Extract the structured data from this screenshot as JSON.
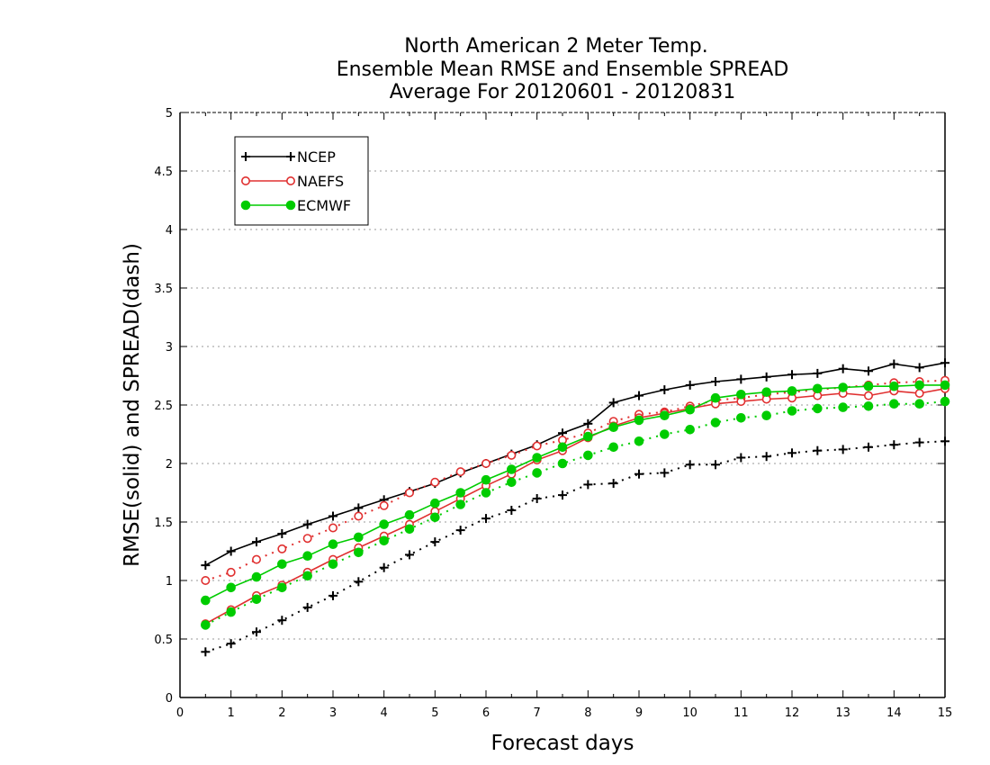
{
  "chart_data": {
    "type": "line",
    "title_lines": [
      "North American 2 Meter Temp.",
      "Ensemble Mean RMSE and Ensemble SPREAD",
      "Average For 20120601 - 20120831"
    ],
    "xlabel": "Forecast days",
    "ylabel": "RMSE(solid) and SPREAD(dash)",
    "xlim": [
      0,
      15
    ],
    "ylim": [
      0,
      5
    ],
    "x_ticks": [
      "0",
      "1",
      "2",
      "3",
      "4",
      "5",
      "6",
      "7",
      "8",
      "9",
      "10",
      "11",
      "12",
      "13",
      "14",
      "15"
    ],
    "y_ticks": [
      "0",
      "0.5",
      "1",
      "1.5",
      "2",
      "2.5",
      "3",
      "3.5",
      "4",
      "4.5",
      "5"
    ],
    "grid": "horizontal-dotted",
    "legend_position": "top-left",
    "x": [
      0.5,
      1,
      1.5,
      2,
      2.5,
      3,
      3.5,
      4,
      4.5,
      5,
      5.5,
      6,
      6.5,
      7,
      7.5,
      8,
      8.5,
      9,
      9.5,
      10,
      10.5,
      11,
      11.5,
      12,
      12.5,
      13,
      13.5,
      14,
      14.5,
      15
    ],
    "series": [
      {
        "name": "NCEP",
        "color": "#000000",
        "marker": "plus",
        "rmse": [
          1.13,
          1.25,
          1.33,
          1.4,
          1.48,
          1.55,
          1.62,
          1.69,
          1.76,
          1.83,
          1.92,
          2.0,
          2.08,
          2.16,
          2.26,
          2.34,
          2.52,
          2.58,
          2.63,
          2.67,
          2.7,
          2.72,
          2.74,
          2.76,
          2.77,
          2.81,
          2.79,
          2.85,
          2.82,
          2.86
        ],
        "spread": [
          0.39,
          0.46,
          0.56,
          0.66,
          0.77,
          0.87,
          0.99,
          1.11,
          1.22,
          1.33,
          1.43,
          1.53,
          1.6,
          1.7,
          1.73,
          1.82,
          1.83,
          1.91,
          1.92,
          1.99,
          1.99,
          2.05,
          2.06,
          2.09,
          2.11,
          2.12,
          2.14,
          2.16,
          2.18,
          2.19
        ]
      },
      {
        "name": "NAEFS",
        "color": "#e03030",
        "marker": "open-circle",
        "rmse": [
          0.63,
          0.75,
          0.87,
          0.96,
          1.07,
          1.18,
          1.28,
          1.38,
          1.48,
          1.59,
          1.7,
          1.81,
          1.91,
          2.03,
          2.11,
          2.22,
          2.32,
          2.39,
          2.43,
          2.47,
          2.51,
          2.53,
          2.55,
          2.56,
          2.58,
          2.6,
          2.58,
          2.62,
          2.6,
          2.64
        ],
        "spread": [
          1.0,
          1.07,
          1.18,
          1.27,
          1.36,
          1.45,
          1.55,
          1.64,
          1.75,
          1.84,
          1.93,
          2.0,
          2.07,
          2.15,
          2.2,
          2.26,
          2.36,
          2.42,
          2.44,
          2.49,
          2.54,
          2.56,
          2.59,
          2.61,
          2.63,
          2.65,
          2.67,
          2.69,
          2.7,
          2.71
        ]
      },
      {
        "name": "ECMWF",
        "color": "#00cc00",
        "marker": "filled-circle",
        "rmse": [
          0.83,
          0.94,
          1.03,
          1.14,
          1.21,
          1.31,
          1.37,
          1.48,
          1.56,
          1.66,
          1.75,
          1.86,
          1.95,
          2.05,
          2.14,
          2.23,
          2.31,
          2.37,
          2.41,
          2.46,
          2.56,
          2.59,
          2.61,
          2.62,
          2.64,
          2.65,
          2.66,
          2.66,
          2.67,
          2.67
        ],
        "spread": [
          0.62,
          0.73,
          0.84,
          0.94,
          1.04,
          1.14,
          1.24,
          1.34,
          1.44,
          1.54,
          1.65,
          1.75,
          1.84,
          1.92,
          2.0,
          2.07,
          2.14,
          2.19,
          2.25,
          2.29,
          2.35,
          2.39,
          2.41,
          2.45,
          2.47,
          2.48,
          2.49,
          2.51,
          2.51,
          2.53
        ]
      }
    ]
  }
}
